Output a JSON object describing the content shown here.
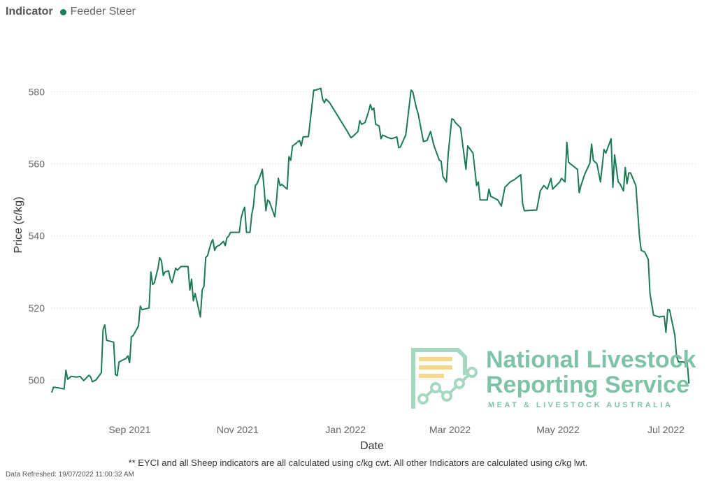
{
  "legend": {
    "title": "Indicator",
    "series_label": "Feeder Steer"
  },
  "colors": {
    "series": "#1c7a55",
    "grid": "#cfcfcf",
    "logo": "#7fc3a6"
  },
  "logo": {
    "line1": "National Livestock",
    "line2": "Reporting Service",
    "line3": "MEAT & LIVESTOCK AUSTRALIA"
  },
  "footnote": "** EYCI and all Sheep indicators are all calculated using c/kg cwt. All other Indicators are calculated using c/kg lwt.",
  "refreshed": "Data Refreshed: 19/07/2022 11:00:32 AM",
  "chart_data": {
    "type": "line",
    "title": "",
    "xlabel": "Date",
    "ylabel": "Price (c/kg)",
    "ylim": [
      493,
      590
    ],
    "y_ticks": [
      500,
      520,
      540,
      560,
      580
    ],
    "x_ticks": [
      {
        "label": "Sep 2021",
        "x": "2021-09-01"
      },
      {
        "label": "Nov 2021",
        "x": "2021-11-01"
      },
      {
        "label": "Jan 2022",
        "x": "2022-01-01"
      },
      {
        "label": "Mar 2022",
        "x": "2022-03-01"
      },
      {
        "label": "May 2022",
        "x": "2022-05-01"
      },
      {
        "label": "Jul 2022",
        "x": "2022-07-01"
      }
    ],
    "xlim": [
      "2021-07-19",
      "2022-07-19"
    ],
    "grid": true,
    "legend_position": "top-left",
    "series": [
      {
        "name": "Feeder Steer",
        "points": [
          [
            "2021-07-19",
            496.5
          ],
          [
            "2021-07-20",
            498
          ],
          [
            "2021-07-23",
            497.8
          ],
          [
            "2021-07-26",
            497.5
          ],
          [
            "2021-07-27",
            502.7
          ],
          [
            "2021-07-28",
            500.2
          ],
          [
            "2021-07-30",
            501
          ],
          [
            "2021-08-02",
            500.8
          ],
          [
            "2021-08-04",
            501
          ],
          [
            "2021-08-06",
            499.8
          ],
          [
            "2021-08-09",
            501.3
          ],
          [
            "2021-08-10",
            500.8
          ],
          [
            "2021-08-11",
            499.5
          ],
          [
            "2021-08-13",
            500
          ],
          [
            "2021-08-16",
            502
          ],
          [
            "2021-08-17",
            514
          ],
          [
            "2021-08-18",
            515.3
          ],
          [
            "2021-08-19",
            511
          ],
          [
            "2021-08-23",
            510.5
          ],
          [
            "2021-08-24",
            501.5
          ],
          [
            "2021-08-25",
            501.2
          ],
          [
            "2021-08-26",
            505
          ],
          [
            "2021-08-30",
            506
          ],
          [
            "2021-08-31",
            506.7
          ],
          [
            "2021-09-01",
            504.8
          ],
          [
            "2021-09-02",
            512
          ],
          [
            "2021-09-03",
            512.3
          ],
          [
            "2021-09-06",
            515
          ],
          [
            "2021-09-07",
            520.5
          ],
          [
            "2021-09-08",
            519.5
          ],
          [
            "2021-09-12",
            520
          ],
          [
            "2021-09-13",
            530
          ],
          [
            "2021-09-14",
            526.5
          ],
          [
            "2021-09-15",
            527
          ],
          [
            "2021-09-17",
            531
          ],
          [
            "2021-09-18",
            534
          ],
          [
            "2021-09-19",
            533
          ],
          [
            "2021-09-20",
            529
          ],
          [
            "2021-09-21",
            530
          ],
          [
            "2021-09-23",
            530.3
          ],
          [
            "2021-09-24",
            528
          ],
          [
            "2021-09-25",
            527
          ],
          [
            "2021-09-27",
            531
          ],
          [
            "2021-09-28",
            530.5
          ],
          [
            "2021-09-30",
            531.5
          ],
          [
            "2021-10-04",
            531.5
          ],
          [
            "2021-10-05",
            525
          ],
          [
            "2021-10-06",
            528
          ],
          [
            "2021-10-07",
            522
          ],
          [
            "2021-10-08",
            524
          ],
          [
            "2021-10-11",
            517.5
          ],
          [
            "2021-10-12",
            525
          ],
          [
            "2021-10-13",
            526
          ],
          [
            "2021-10-14",
            534
          ],
          [
            "2021-10-15",
            534.5
          ],
          [
            "2021-10-17",
            538
          ],
          [
            "2021-10-18",
            539
          ],
          [
            "2021-10-19",
            536
          ],
          [
            "2021-10-20",
            537
          ],
          [
            "2021-10-22",
            537.5
          ],
          [
            "2021-10-24",
            538.5
          ],
          [
            "2021-10-25",
            537.3
          ],
          [
            "2021-10-26",
            539.5
          ],
          [
            "2021-10-27",
            540
          ],
          [
            "2021-10-28",
            541
          ],
          [
            "2021-11-02",
            541
          ],
          [
            "2021-11-03",
            545
          ],
          [
            "2021-11-04",
            546.8
          ],
          [
            "2021-11-05",
            548
          ],
          [
            "2021-11-06",
            541
          ],
          [
            "2021-11-08",
            541
          ],
          [
            "2021-11-09",
            546
          ],
          [
            "2021-11-10",
            548.5
          ],
          [
            "2021-11-11",
            554
          ],
          [
            "2021-11-12",
            554.5
          ],
          [
            "2021-11-14",
            557
          ],
          [
            "2021-11-15",
            558.5
          ],
          [
            "2021-11-16",
            553
          ],
          [
            "2021-11-17",
            547
          ],
          [
            "2021-11-18",
            550
          ],
          [
            "2021-11-19",
            549.5
          ],
          [
            "2021-11-22",
            545.3
          ],
          [
            "2021-11-23",
            550
          ],
          [
            "2021-11-24",
            556
          ],
          [
            "2021-11-25",
            554
          ],
          [
            "2021-11-26",
            554.3
          ],
          [
            "2021-11-29",
            553
          ],
          [
            "2021-11-30",
            562
          ],
          [
            "2021-12-01",
            561
          ],
          [
            "2021-12-02",
            565
          ],
          [
            "2021-12-03",
            565.3
          ],
          [
            "2021-12-06",
            566.5
          ],
          [
            "2021-12-07",
            565
          ],
          [
            "2021-12-08",
            567.5
          ],
          [
            "2021-12-11",
            567.6
          ],
          [
            "2021-12-13",
            576
          ],
          [
            "2021-12-14",
            580.5
          ],
          [
            "2021-12-15",
            580.5
          ],
          [
            "2021-12-18",
            581
          ],
          [
            "2021-12-19",
            578
          ],
          [
            "2021-12-20",
            577
          ],
          [
            "2021-12-21",
            578
          ],
          [
            "2021-12-23",
            577
          ],
          [
            "2022-01-02",
            569
          ],
          [
            "2022-01-04",
            567.3
          ],
          [
            "2022-01-05",
            567.6
          ],
          [
            "2022-01-08",
            569
          ],
          [
            "2022-01-09",
            572
          ],
          [
            "2022-01-10",
            571
          ],
          [
            "2022-01-12",
            571.5
          ],
          [
            "2022-01-14",
            574.5
          ],
          [
            "2022-01-15",
            576.5
          ],
          [
            "2022-01-16",
            575
          ],
          [
            "2022-01-17",
            575.5
          ],
          [
            "2022-01-18",
            571
          ],
          [
            "2022-01-20",
            570.5
          ],
          [
            "2022-01-21",
            567
          ],
          [
            "2022-01-22",
            568
          ],
          [
            "2022-01-25",
            567.3
          ],
          [
            "2022-01-27",
            567
          ],
          [
            "2022-01-30",
            567.5
          ],
          [
            "2022-01-31",
            564.5
          ],
          [
            "2022-02-01",
            564.7
          ],
          [
            "2022-02-03",
            567
          ],
          [
            "2022-02-04",
            568
          ],
          [
            "2022-02-07",
            580.5
          ],
          [
            "2022-02-08",
            580
          ],
          [
            "2022-02-10",
            575.5
          ],
          [
            "2022-02-11",
            574
          ],
          [
            "2022-02-14",
            566.2
          ],
          [
            "2022-02-16",
            566.5
          ],
          [
            "2022-02-18",
            569
          ],
          [
            "2022-02-20",
            565
          ],
          [
            "2022-02-23",
            561
          ],
          [
            "2022-02-24",
            560.8
          ],
          [
            "2022-02-25",
            556.5
          ],
          [
            "2022-02-27",
            555
          ],
          [
            "2022-02-28",
            563
          ],
          [
            "2022-03-02",
            572.5
          ],
          [
            "2022-03-03",
            572.3
          ],
          [
            "2022-03-04",
            571.5
          ],
          [
            "2022-03-07",
            570
          ],
          [
            "2022-03-08",
            566
          ],
          [
            "2022-03-10",
            558.5
          ],
          [
            "2022-03-11",
            565
          ],
          [
            "2022-03-14",
            563
          ],
          [
            "2022-03-16",
            554
          ],
          [
            "2022-03-17",
            555
          ],
          [
            "2022-03-18",
            550
          ],
          [
            "2022-03-22",
            550
          ],
          [
            "2022-03-23",
            553
          ],
          [
            "2022-03-24",
            551
          ],
          [
            "2022-03-28",
            550
          ],
          [
            "2022-03-30",
            548.3
          ],
          [
            "2022-04-01",
            553.5
          ],
          [
            "2022-04-04",
            555
          ],
          [
            "2022-04-06",
            555.5
          ],
          [
            "2022-04-10",
            557
          ],
          [
            "2022-04-11",
            549
          ],
          [
            "2022-04-12",
            547
          ],
          [
            "2022-04-19",
            547.2
          ],
          [
            "2022-04-21",
            552.5
          ],
          [
            "2022-04-23",
            554
          ],
          [
            "2022-04-25",
            553
          ],
          [
            "2022-04-27",
            556
          ],
          [
            "2022-04-28",
            553
          ],
          [
            "2022-05-02",
            555
          ],
          [
            "2022-05-03",
            556
          ],
          [
            "2022-05-05",
            555
          ],
          [
            "2022-05-06",
            566
          ],
          [
            "2022-05-07",
            560.5
          ],
          [
            "2022-05-08",
            560
          ],
          [
            "2022-05-12",
            558.5
          ],
          [
            "2022-05-13",
            552
          ],
          [
            "2022-05-14",
            554
          ],
          [
            "2022-05-16",
            557
          ],
          [
            "2022-05-19",
            560.2
          ],
          [
            "2022-05-20",
            565.5
          ],
          [
            "2022-05-21",
            561
          ],
          [
            "2022-05-23",
            560
          ],
          [
            "2022-05-25",
            555
          ],
          [
            "2022-05-27",
            564
          ],
          [
            "2022-05-28",
            563
          ],
          [
            "2022-05-31",
            567
          ],
          [
            "2022-06-01",
            553.5
          ],
          [
            "2022-06-02",
            562.5
          ],
          [
            "2022-06-04",
            555
          ],
          [
            "2022-06-05",
            554.5
          ],
          [
            "2022-06-07",
            552.5
          ],
          [
            "2022-06-08",
            559
          ],
          [
            "2022-06-09",
            554.5
          ],
          [
            "2022-06-10",
            557.5
          ],
          [
            "2022-06-11",
            557.5
          ],
          [
            "2022-06-14",
            554
          ],
          [
            "2022-06-16",
            540
          ],
          [
            "2022-06-17",
            536
          ],
          [
            "2022-06-19",
            535.5
          ],
          [
            "2022-06-21",
            533.5
          ],
          [
            "2022-06-22",
            524
          ],
          [
            "2022-06-24",
            518
          ],
          [
            "2022-06-27",
            517.5
          ],
          [
            "2022-06-30",
            517.7
          ],
          [
            "2022-07-01",
            513.2
          ],
          [
            "2022-07-02",
            519.5
          ],
          [
            "2022-07-03",
            519.5
          ],
          [
            "2022-07-06",
            512.5
          ],
          [
            "2022-07-07",
            506.7
          ],
          [
            "2022-07-08",
            505
          ],
          [
            "2022-07-11",
            505
          ],
          [
            "2022-07-12",
            504.5
          ],
          [
            "2022-07-13",
            505
          ],
          [
            "2022-07-14",
            499
          ]
        ]
      }
    ]
  }
}
